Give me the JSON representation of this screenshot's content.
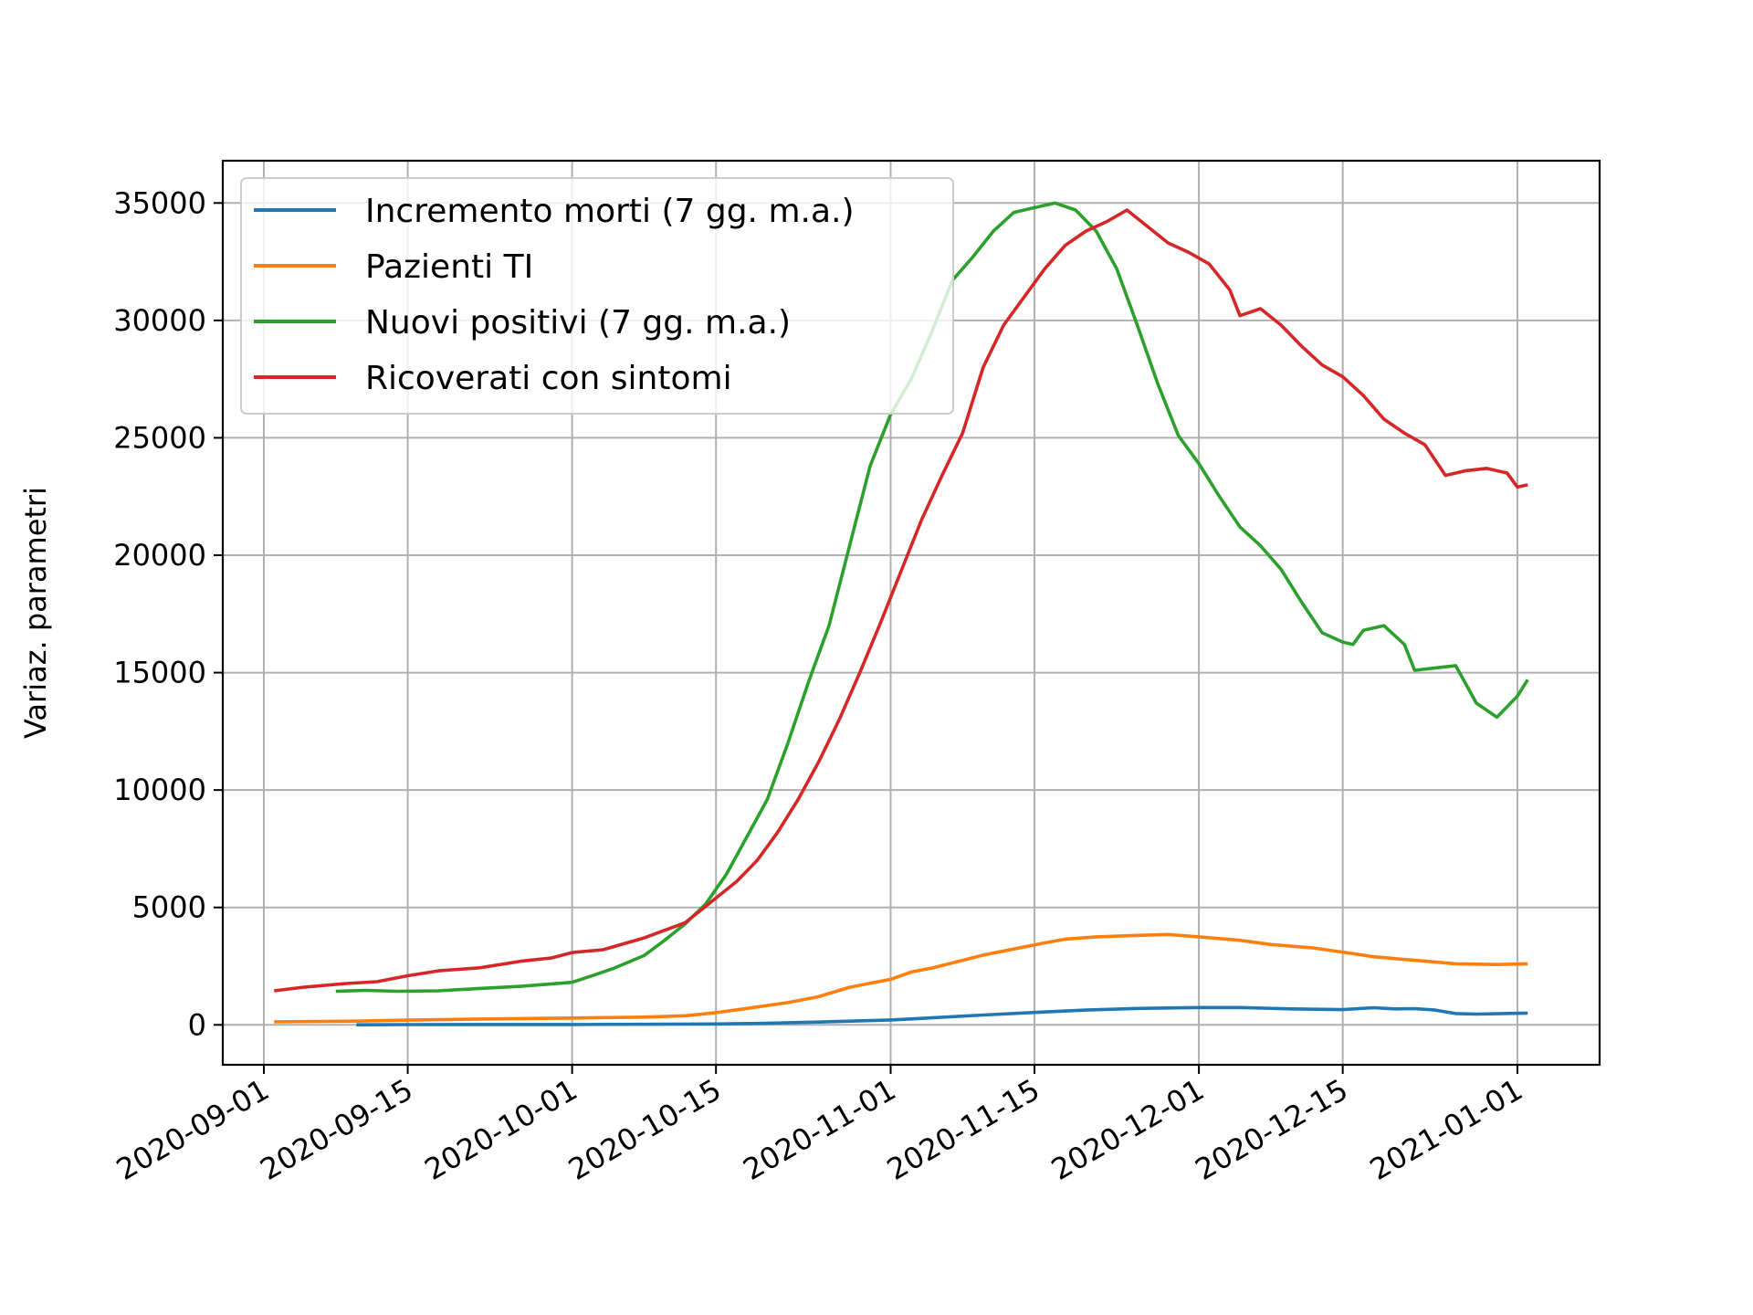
{
  "chart_data": {
    "type": "line",
    "title": "",
    "xlabel": "",
    "ylabel": "Variaz. parametri",
    "x_ticks": [
      "2020-09-01",
      "2020-09-15",
      "2020-10-01",
      "2020-10-15",
      "2020-11-01",
      "2020-11-15",
      "2020-12-01",
      "2020-12-15",
      "2021-01-01"
    ],
    "y_ticks": [
      0,
      5000,
      10000,
      15000,
      20000,
      25000,
      30000,
      35000
    ],
    "xlim": [
      "2020-08-28",
      "2021-01-09"
    ],
    "ylim": [
      -1700,
      36800
    ],
    "grid": true,
    "legend_position": "upper left",
    "series": [
      {
        "name": "Incremento morti (7 gg. m.a.)",
        "color": "#1f77b4",
        "points": [
          [
            "2020-09-10",
            5
          ],
          [
            "2020-09-15",
            10
          ],
          [
            "2020-10-01",
            15
          ],
          [
            "2020-10-15",
            40
          ],
          [
            "2020-10-20",
            70
          ],
          [
            "2020-10-25",
            120
          ],
          [
            "2020-11-01",
            210
          ],
          [
            "2020-11-05",
            300
          ],
          [
            "2020-11-10",
            420
          ],
          [
            "2020-11-15",
            530
          ],
          [
            "2020-11-20",
            630
          ],
          [
            "2020-11-25",
            700
          ],
          [
            "2020-12-01",
            740
          ],
          [
            "2020-12-05",
            740
          ],
          [
            "2020-12-10",
            680
          ],
          [
            "2020-12-15",
            650
          ],
          [
            "2020-12-18",
            730
          ],
          [
            "2020-12-20",
            680
          ],
          [
            "2020-12-22",
            690
          ],
          [
            "2020-12-24",
            630
          ],
          [
            "2020-12-26",
            480
          ],
          [
            "2020-12-28",
            460
          ],
          [
            "2021-01-02",
            500
          ]
        ]
      },
      {
        "name": "Pazienti TI",
        "color": "#ff7f0e",
        "points": [
          [
            "2020-09-02",
            130
          ],
          [
            "2020-09-10",
            160
          ],
          [
            "2020-09-15",
            200
          ],
          [
            "2020-09-22",
            250
          ],
          [
            "2020-10-01",
            290
          ],
          [
            "2020-10-08",
            330
          ],
          [
            "2020-10-12",
            390
          ],
          [
            "2020-10-15",
            520
          ],
          [
            "2020-10-18",
            700
          ],
          [
            "2020-10-22",
            950
          ],
          [
            "2020-10-25",
            1200
          ],
          [
            "2020-10-28",
            1600
          ],
          [
            "2020-11-01",
            1940
          ],
          [
            "2020-11-03",
            2250
          ],
          [
            "2020-11-05",
            2420
          ],
          [
            "2020-11-08",
            2750
          ],
          [
            "2020-11-10",
            2970
          ],
          [
            "2020-11-13",
            3230
          ],
          [
            "2020-11-16",
            3490
          ],
          [
            "2020-11-18",
            3650
          ],
          [
            "2020-11-21",
            3750
          ],
          [
            "2020-11-25",
            3810
          ],
          [
            "2020-11-28",
            3850
          ],
          [
            "2020-12-01",
            3750
          ],
          [
            "2020-12-05",
            3600
          ],
          [
            "2020-12-08",
            3420
          ],
          [
            "2020-12-12",
            3280
          ],
          [
            "2020-12-15",
            3100
          ],
          [
            "2020-12-18",
            2900
          ],
          [
            "2020-12-22",
            2750
          ],
          [
            "2020-12-26",
            2600
          ],
          [
            "2020-12-30",
            2570
          ],
          [
            "2021-01-02",
            2600
          ]
        ]
      },
      {
        "name": "Nuovi positivi (7 gg. m.a.)",
        "color": "#2ca02c",
        "points": [
          [
            "2020-09-08",
            1430
          ],
          [
            "2020-09-11",
            1470
          ],
          [
            "2020-09-14",
            1430
          ],
          [
            "2020-09-18",
            1450
          ],
          [
            "2020-09-22",
            1550
          ],
          [
            "2020-09-26",
            1640
          ],
          [
            "2020-10-01",
            1810
          ],
          [
            "2020-10-03",
            2100
          ],
          [
            "2020-10-05",
            2400
          ],
          [
            "2020-10-08",
            2950
          ],
          [
            "2020-10-10",
            3600
          ],
          [
            "2020-10-12",
            4300
          ],
          [
            "2020-10-14",
            5150
          ],
          [
            "2020-10-16",
            6400
          ],
          [
            "2020-10-18",
            8000
          ],
          [
            "2020-10-20",
            9600
          ],
          [
            "2020-10-22",
            12000
          ],
          [
            "2020-10-24",
            14600
          ],
          [
            "2020-10-26",
            17000
          ],
          [
            "2020-10-28",
            20400
          ],
          [
            "2020-10-30",
            23800
          ],
          [
            "2020-11-01",
            26000
          ],
          [
            "2020-11-03",
            27500
          ],
          [
            "2020-11-05",
            29500
          ],
          [
            "2020-11-07",
            31700
          ],
          [
            "2020-11-09",
            32700
          ],
          [
            "2020-11-11",
            33800
          ],
          [
            "2020-11-13",
            34600
          ],
          [
            "2020-11-15",
            34800
          ],
          [
            "2020-11-17",
            35000
          ],
          [
            "2020-11-19",
            34700
          ],
          [
            "2020-11-21",
            33800
          ],
          [
            "2020-11-23",
            32200
          ],
          [
            "2020-11-25",
            29800
          ],
          [
            "2020-11-27",
            27300
          ],
          [
            "2020-11-29",
            25100
          ],
          [
            "2020-12-01",
            23900
          ],
          [
            "2020-12-03",
            22500
          ],
          [
            "2020-12-05",
            21200
          ],
          [
            "2020-12-07",
            20400
          ],
          [
            "2020-12-09",
            19400
          ],
          [
            "2020-12-11",
            18000
          ],
          [
            "2020-12-13",
            16700
          ],
          [
            "2020-12-15",
            16300
          ],
          [
            "2020-12-16",
            16200
          ],
          [
            "2020-12-17",
            16800
          ],
          [
            "2020-12-19",
            17000
          ],
          [
            "2020-12-21",
            16200
          ],
          [
            "2020-12-22",
            15100
          ],
          [
            "2020-12-24",
            15200
          ],
          [
            "2020-12-26",
            15300
          ],
          [
            "2020-12-28",
            13700
          ],
          [
            "2020-12-30",
            13100
          ],
          [
            "2021-01-01",
            14000
          ],
          [
            "2021-01-02",
            14700
          ]
        ]
      },
      {
        "name": "Ricoverati con sintomi",
        "color": "#d62728",
        "points": [
          [
            "2020-09-02",
            1450
          ],
          [
            "2020-09-05",
            1610
          ],
          [
            "2020-09-09",
            1760
          ],
          [
            "2020-09-12",
            1840
          ],
          [
            "2020-09-15",
            2090
          ],
          [
            "2020-09-18",
            2300
          ],
          [
            "2020-09-22",
            2430
          ],
          [
            "2020-09-26",
            2710
          ],
          [
            "2020-09-29",
            2850
          ],
          [
            "2020-10-01",
            3080
          ],
          [
            "2020-10-04",
            3200
          ],
          [
            "2020-10-08",
            3700
          ],
          [
            "2020-10-12",
            4350
          ],
          [
            "2020-10-15",
            5400
          ],
          [
            "2020-10-17",
            6100
          ],
          [
            "2020-10-19",
            7000
          ],
          [
            "2020-10-21",
            8200
          ],
          [
            "2020-10-23",
            9600
          ],
          [
            "2020-10-25",
            11200
          ],
          [
            "2020-10-27",
            13000
          ],
          [
            "2020-10-29",
            15000
          ],
          [
            "2020-10-31",
            17100
          ],
          [
            "2020-11-02",
            19300
          ],
          [
            "2020-11-04",
            21500
          ],
          [
            "2020-11-06",
            23400
          ],
          [
            "2020-11-08",
            25200
          ],
          [
            "2020-11-10",
            28000
          ],
          [
            "2020-11-12",
            29800
          ],
          [
            "2020-11-14",
            31000
          ],
          [
            "2020-11-16",
            32200
          ],
          [
            "2020-11-18",
            33200
          ],
          [
            "2020-11-20",
            33800
          ],
          [
            "2020-11-22",
            34200
          ],
          [
            "2020-11-24",
            34700
          ],
          [
            "2020-11-26",
            34000
          ],
          [
            "2020-11-28",
            33300
          ],
          [
            "2020-11-30",
            32900
          ],
          [
            "2020-12-02",
            32400
          ],
          [
            "2020-12-04",
            31300
          ],
          [
            "2020-12-05",
            30200
          ],
          [
            "2020-12-07",
            30500
          ],
          [
            "2020-12-09",
            29800
          ],
          [
            "2020-12-11",
            28900
          ],
          [
            "2020-12-13",
            28100
          ],
          [
            "2020-12-15",
            27600
          ],
          [
            "2020-12-17",
            26800
          ],
          [
            "2020-12-19",
            25800
          ],
          [
            "2020-12-21",
            25200
          ],
          [
            "2020-12-23",
            24700
          ],
          [
            "2020-12-25",
            23400
          ],
          [
            "2020-12-27",
            23600
          ],
          [
            "2020-12-29",
            23700
          ],
          [
            "2020-12-31",
            23500
          ],
          [
            "2021-01-01",
            22900
          ],
          [
            "2021-01-02",
            23000
          ]
        ]
      }
    ]
  }
}
